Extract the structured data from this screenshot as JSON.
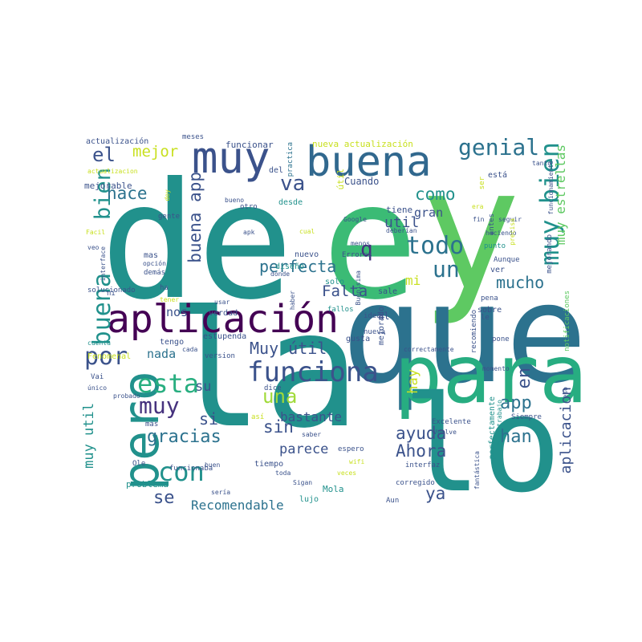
{
  "word_cloud": {
    "palette": "viridis",
    "background": "#ffffff",
    "words": [
      {
        "text": "de",
        "color": "#21918c"
      },
      {
        "text": "e",
        "color": "#3bbb75"
      },
      {
        "text": "y",
        "color": "#5ec962"
      },
      {
        "text": "la",
        "color": "#21918c"
      },
      {
        "text": "que",
        "color": "#2c728e"
      },
      {
        "text": "para",
        "color": "#27ad81"
      },
      {
        "text": "lo",
        "color": "#21918c"
      },
      {
        "text": "muy",
        "color": "#3b528b"
      },
      {
        "text": "buena",
        "color": "#31688e"
      },
      {
        "text": "aplicación",
        "color": "#440154"
      },
      {
        "text": "funciona",
        "color": "#3b528b"
      },
      {
        "text": "pero",
        "color": "#21918c"
      },
      {
        "text": "con",
        "color": "#21918c"
      },
      {
        "text": "esta",
        "color": "#28ae80"
      },
      {
        "text": "por",
        "color": "#3b528b"
      },
      {
        "text": "muy bien",
        "color": "#21918c"
      },
      {
        "text": "genial",
        "color": "#2c728e"
      },
      {
        "text": "todo",
        "color": "#2c728e"
      },
      {
        "text": "un",
        "color": "#2c728e"
      },
      {
        "text": "el",
        "color": "#3b528b"
      },
      {
        "text": "mejor",
        "color": "#c8e020"
      },
      {
        "text": "bien",
        "color": "#21918c"
      },
      {
        "text": "va",
        "color": "#3b528b"
      },
      {
        "text": "hace",
        "color": "#2c728e"
      },
      {
        "text": "buena app",
        "color": "#3b528b"
      },
      {
        "text": "perfecta",
        "color": "#2c728e"
      },
      {
        "text": "q",
        "color": "#46327e"
      },
      {
        "text": "como",
        "color": "#21918c"
      },
      {
        "text": "gran",
        "color": "#3b528b"
      },
      {
        "text": "util",
        "color": "#3b528b"
      },
      {
        "text": "mucho",
        "color": "#2c728e"
      },
      {
        "text": "mi",
        "color": "#c8e020"
      },
      {
        "text": "Falta",
        "color": "#3b528b"
      },
      {
        "text": "buena",
        "color": "#21918c"
      },
      {
        "text": "Muy útil",
        "color": "#3b528b"
      },
      {
        "text": "nos",
        "color": "#3b528b"
      },
      {
        "text": "nada",
        "color": "#2c728e"
      },
      {
        "text": "su",
        "color": "#3b528b"
      },
      {
        "text": "una",
        "color": "#a0da39"
      },
      {
        "text": "si",
        "color": "#3b528b"
      },
      {
        "text": "muy",
        "color": "#46327e"
      },
      {
        "text": "gracias",
        "color": "#2c728e"
      },
      {
        "text": "bastante",
        "color": "#3b528b"
      },
      {
        "text": "sin",
        "color": "#3b528b"
      },
      {
        "text": "parece",
        "color": "#3b528b"
      },
      {
        "text": "ayuda",
        "color": "#3b528b"
      },
      {
        "text": "Ahora",
        "color": "#3b528b"
      },
      {
        "text": "han",
        "color": "#2c728e"
      },
      {
        "text": "app",
        "color": "#2c728e"
      },
      {
        "text": "en",
        "color": "#3b528b"
      },
      {
        "text": "hay",
        "color": "#c8e020"
      },
      {
        "text": "ya",
        "color": "#3b528b"
      },
      {
        "text": "se",
        "color": "#3b528b"
      },
      {
        "text": "Recomendable",
        "color": "#2c728e"
      },
      {
        "text": "muy util",
        "color": "#21918c"
      },
      {
        "text": "aplicacion",
        "color": "#3b528b"
      },
      {
        "text": "muy estrellas",
        "color": "#5ec962"
      },
      {
        "text": "nueva actualización",
        "color": "#c8e020"
      },
      {
        "text": "funcionar",
        "color": "#3b528b"
      },
      {
        "text": "actualización",
        "color": "#3b528b"
      },
      {
        "text": "meses",
        "color": "#3b528b"
      },
      {
        "text": "practica",
        "color": "#2c728e"
      },
      {
        "text": "actualizacion",
        "color": "#c8e020"
      },
      {
        "text": "mejorable",
        "color": "#3b528b"
      },
      {
        "text": "del",
        "color": "#3b528b"
      },
      {
        "text": "Cuando",
        "color": "#3b528b"
      },
      {
        "text": "bueno",
        "color": "#3b528b"
      },
      {
        "text": "desde",
        "color": "#21918c"
      },
      {
        "text": "tiene",
        "color": "#3b528b"
      },
      {
        "text": "Google",
        "color": "#3b528b"
      },
      {
        "text": "apk",
        "color": "#3b528b"
      },
      {
        "text": "gente",
        "color": "#3b528b"
      },
      {
        "text": "Facil",
        "color": "#c8e020"
      },
      {
        "text": "veo",
        "color": "#3b528b"
      },
      {
        "text": "mas",
        "color": "#3b528b"
      },
      {
        "text": "opción",
        "color": "#3b528b"
      },
      {
        "text": "demás",
        "color": "#3b528b"
      },
      {
        "text": "diseño",
        "color": "#21918c"
      },
      {
        "text": "Errores",
        "color": "#3b528b"
      },
      {
        "text": "menos",
        "color": "#3b528b"
      },
      {
        "text": "punto",
        "color": "#21918c"
      },
      {
        "text": "Aunque",
        "color": "#3b528b"
      },
      {
        "text": "mejorando",
        "color": "#3b528b"
      },
      {
        "text": "haciendo",
        "color": "#3b528b"
      },
      {
        "text": "seguir",
        "color": "#3b528b"
      },
      {
        "text": "solucionado",
        "color": "#3b528b"
      },
      {
        "text": "usar",
        "color": "#3b528b"
      },
      {
        "text": "verdad",
        "color": "#3b528b"
      },
      {
        "text": "haber",
        "color": "#3b528b"
      },
      {
        "text": "fallos",
        "color": "#21918c"
      },
      {
        "text": "solo",
        "color": "#21918c"
      },
      {
        "text": "Buenisima",
        "color": "#3b528b"
      },
      {
        "text": "sale",
        "color": "#3b528b"
      },
      {
        "text": "pena",
        "color": "#3b528b"
      },
      {
        "text": "recomiendo",
        "color": "#3b528b"
      },
      {
        "text": "sobre",
        "color": "#3b528b"
      },
      {
        "text": "pone",
        "color": "#3b528b"
      },
      {
        "text": "notificaciones",
        "color": "#5ec962"
      },
      {
        "text": "mejorado",
        "color": "#3b528b"
      },
      {
        "text": "nueva",
        "color": "#3b528b"
      },
      {
        "text": "ideal",
        "color": "#3b528b"
      },
      {
        "text": "gusta",
        "color": "#3b528b"
      },
      {
        "text": "tengo",
        "color": "#3b528b"
      },
      {
        "text": "estupenda",
        "color": "#3b528b"
      },
      {
        "text": "Fenomenal",
        "color": "#c8e020"
      },
      {
        "text": "cuenta",
        "color": "#21918c"
      },
      {
        "text": "version",
        "color": "#3b528b"
      },
      {
        "text": "único",
        "color": "#3b528b"
      },
      {
        "text": "probado",
        "color": "#3b528b"
      },
      {
        "text": "más",
        "color": "#3b528b"
      },
      {
        "text": "dice",
        "color": "#3b528b"
      },
      {
        "text": "así",
        "color": "#c8e020"
      },
      {
        "text": "Excelente",
        "color": "#3b528b"
      },
      {
        "text": "Siempre",
        "color": "#3b528b"
      },
      {
        "text": "momento",
        "color": "#3b528b"
      },
      {
        "text": "eso",
        "color": "#3b528b"
      },
      {
        "text": "perfectamente",
        "color": "#21918c"
      },
      {
        "text": "Buen trabajo",
        "color": "#21918c"
      },
      {
        "text": "funcionaba",
        "color": "#3b528b"
      },
      {
        "text": "saber",
        "color": "#3b528b"
      },
      {
        "text": "Vuelve",
        "color": "#3b528b"
      },
      {
        "text": "espero",
        "color": "#3b528b"
      },
      {
        "text": "wifi",
        "color": "#c8e020"
      },
      {
        "text": "interfaz",
        "color": "#3b528b"
      },
      {
        "text": "veces",
        "color": "#c8e020"
      },
      {
        "text": "fantástica",
        "color": "#3b528b"
      },
      {
        "text": "corregido",
        "color": "#3b528b"
      },
      {
        "text": "tiempo",
        "color": "#3b528b"
      },
      {
        "text": "problema",
        "color": "#21918c"
      },
      {
        "text": "lujo",
        "color": "#21918c"
      },
      {
        "text": "Mola",
        "color": "#21918c"
      },
      {
        "text": "Aun",
        "color": "#3b528b"
      },
      {
        "text": "Sigan",
        "color": "#3b528b"
      },
      {
        "text": "Ole",
        "color": "#3b528b"
      },
      {
        "text": "buen",
        "color": "#3b528b"
      },
      {
        "text": "toda",
        "color": "#3b528b"
      },
      {
        "text": "le",
        "color": "#3b528b"
      },
      {
        "text": "está",
        "color": "#3b528b"
      },
      {
        "text": "antes",
        "color": "#3b528b"
      },
      {
        "text": "ver",
        "color": "#3b528b"
      },
      {
        "text": "precisa",
        "color": "#c8e020"
      },
      {
        "text": "deberían",
        "color": "#3b528b"
      },
      {
        "text": "funcionamiento",
        "color": "#3b528b"
      },
      {
        "text": "tanto",
        "color": "#3b528b"
      },
      {
        "text": "ser",
        "color": "#c8e020"
      },
      {
        "text": "útil",
        "color": "#c8e020"
      },
      {
        "text": "otro",
        "color": "#3b528b"
      },
      {
        "text": "nuevo",
        "color": "#3b528b"
      },
      {
        "text": "cual",
        "color": "#c8e020"
      },
      {
        "text": "correctamente",
        "color": "#3b528b"
      },
      {
        "text": "ni",
        "color": "#3b528b"
      },
      {
        "text": "interface",
        "color": "#3b528b"
      },
      {
        "text": "sería",
        "color": "#3b528b"
      },
      {
        "text": "ha",
        "color": "#3b528b"
      },
      {
        "text": "doy",
        "color": "#c8e020"
      },
      {
        "text": "al",
        "color": "#3b528b"
      },
      {
        "text": "tener",
        "color": "#c8e020"
      },
      {
        "text": "cada",
        "color": "#3b528b"
      },
      {
        "text": "Vai",
        "color": "#3b528b"
      },
      {
        "text": "fin",
        "color": "#3b528b"
      },
      {
        "text": "era",
        "color": "#c8e020"
      },
      {
        "text": "donde",
        "color": "#3b528b"
      }
    ]
  }
}
